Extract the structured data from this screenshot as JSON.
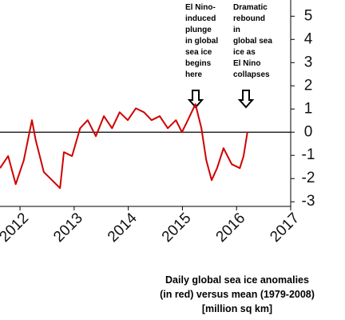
{
  "chart_data": {
    "type": "line",
    "x": [
      2011.63,
      2011.78,
      2011.92,
      2012.07,
      2012.22,
      2012.29,
      2012.44,
      2012.59,
      2012.74,
      2012.81,
      2012.96,
      2013.11,
      2013.25,
      2013.4,
      2013.55,
      2013.7,
      2013.84,
      2013.99,
      2014.14,
      2014.29,
      2014.43,
      2014.58,
      2014.73,
      2014.88,
      2014.99,
      2015.1,
      2015.24,
      2015.35,
      2015.44,
      2015.54,
      2015.64,
      2015.76,
      2015.91,
      2016.06,
      2016.13,
      2016.2
    ],
    "series": [
      {
        "name": "Daily global sea ice anomaly",
        "color": "#d00000",
        "values": [
          -1.55,
          -1.03,
          -2.24,
          -1.21,
          0.52,
          -0.34,
          -1.72,
          -2.07,
          -2.41,
          -0.86,
          -1.03,
          0.17,
          0.52,
          -0.17,
          0.69,
          0.17,
          0.86,
          0.52,
          1.03,
          0.86,
          0.52,
          0.69,
          0.17,
          0.52,
          0,
          0.52,
          1.21,
          0.17,
          -1.21,
          -2.07,
          -1.55,
          -0.69,
          -1.38,
          -1.55,
          -1.03,
          0
        ]
      }
    ],
    "xlim": [
      2011.63,
      2017
    ],
    "xticks": [
      2012,
      2013,
      2014,
      2015,
      2016,
      2017
    ],
    "ylim": [
      -3.2,
      5.7
    ],
    "yticks": [
      -3,
      -2,
      -1,
      0,
      1,
      2,
      3,
      4,
      5
    ],
    "reference_line": 0,
    "annotations": [
      {
        "lines": [
          "El Nino-",
          "induced",
          "plunge",
          "in global",
          "sea ice",
          "begins",
          "here"
        ]
      },
      {
        "lines": [
          "Dramatic",
          "rebound",
          "in",
          "global sea",
          "ice as",
          "El Nino",
          "collapses"
        ]
      }
    ],
    "caption": [
      "Daily global sea ice anomalies",
      "(in red) versus mean (1979-2008)",
      "[million sq km]"
    ]
  }
}
